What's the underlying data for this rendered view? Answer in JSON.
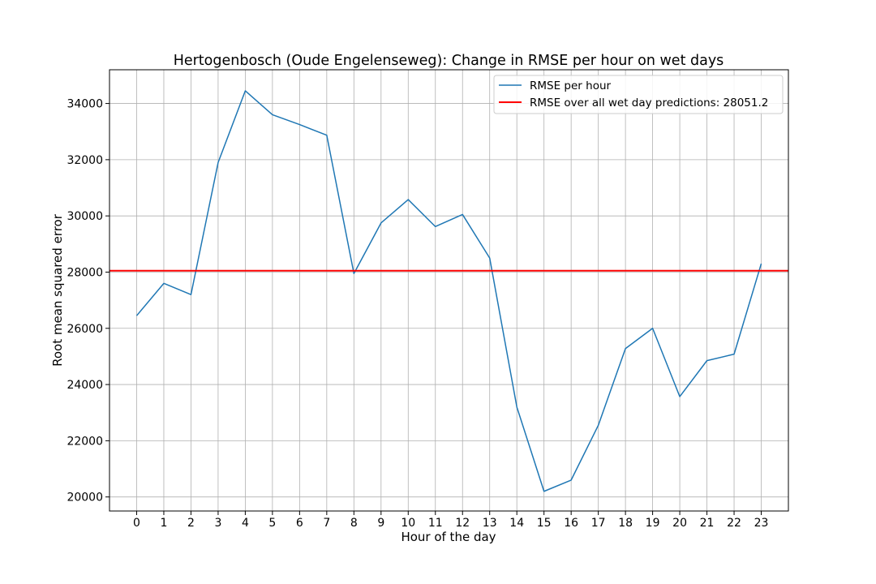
{
  "chart_data": {
    "type": "line",
    "title": "Hertogenbosch (Oude Engelenseweg): Change in RMSE per hour on wet days",
    "xlabel": "Hour of the day",
    "ylabel": "Root mean squared error",
    "x": [
      0,
      1,
      2,
      3,
      4,
      5,
      6,
      7,
      8,
      9,
      10,
      11,
      12,
      13,
      14,
      15,
      16,
      17,
      18,
      19,
      20,
      21,
      22,
      23
    ],
    "x_tick_labels": [
      "0",
      "1",
      "2",
      "3",
      "4",
      "5",
      "6",
      "7",
      "8",
      "9",
      "10",
      "11",
      "12",
      "13",
      "14",
      "15",
      "16",
      "17",
      "18",
      "19",
      "20",
      "21",
      "22",
      "23"
    ],
    "xlim": [
      -1,
      24
    ],
    "ylim": [
      19500,
      35200
    ],
    "y_ticks": [
      20000,
      22000,
      24000,
      26000,
      28000,
      30000,
      32000,
      34000
    ],
    "y_tick_labels": [
      "20000",
      "22000",
      "24000",
      "26000",
      "28000",
      "30000",
      "32000",
      "34000"
    ],
    "series": [
      {
        "name": "RMSE per hour",
        "kind": "line",
        "color": "#1f77b4",
        "values": [
          26450,
          27600,
          27200,
          31900,
          34450,
          33600,
          33250,
          32870,
          27950,
          29750,
          30580,
          29620,
          30050,
          28500,
          23200,
          20200,
          20600,
          22550,
          25280,
          26000,
          23570,
          24850,
          25080,
          28300
        ]
      },
      {
        "name": "RMSE over all wet day predictions: 28051.2",
        "kind": "hline",
        "color": "#ff0000",
        "value": 28051.2
      }
    ],
    "legend_position": "upper right",
    "grid": true
  }
}
